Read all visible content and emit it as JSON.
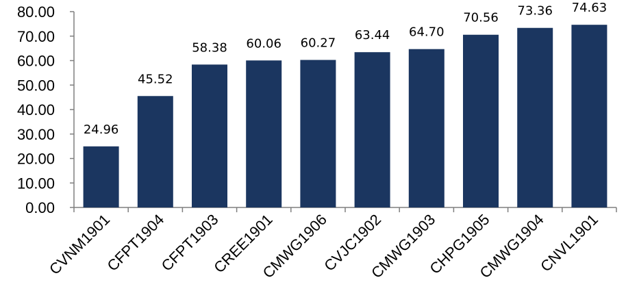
{
  "chart_data": {
    "type": "bar",
    "title": "",
    "xlabel": "",
    "ylabel": "",
    "ylim": [
      0,
      80
    ],
    "yticks": [
      "0.00",
      "10.00",
      "20.00",
      "30.00",
      "40.00",
      "50.00",
      "60.00",
      "70.00",
      "80.00"
    ],
    "categories": [
      "CVNM1901",
      "CFPT1904",
      "CFPT1903",
      "CREE1901",
      "CMWG1906",
      "CVJC1902",
      "CMWG1903",
      "CHPG1905",
      "CMWG1904",
      "CNVL1901"
    ],
    "values": [
      24.96,
      45.52,
      58.38,
      60.06,
      60.27,
      63.44,
      64.7,
      70.56,
      73.36,
      74.63
    ],
    "value_labels": [
      "24.96",
      "45.52",
      "58.38",
      "60.06",
      "60.27",
      "63.44",
      "64.70",
      "70.56",
      "73.36",
      "74.63"
    ],
    "bar_color": "#1b3660",
    "grid": false,
    "legend": "none"
  }
}
